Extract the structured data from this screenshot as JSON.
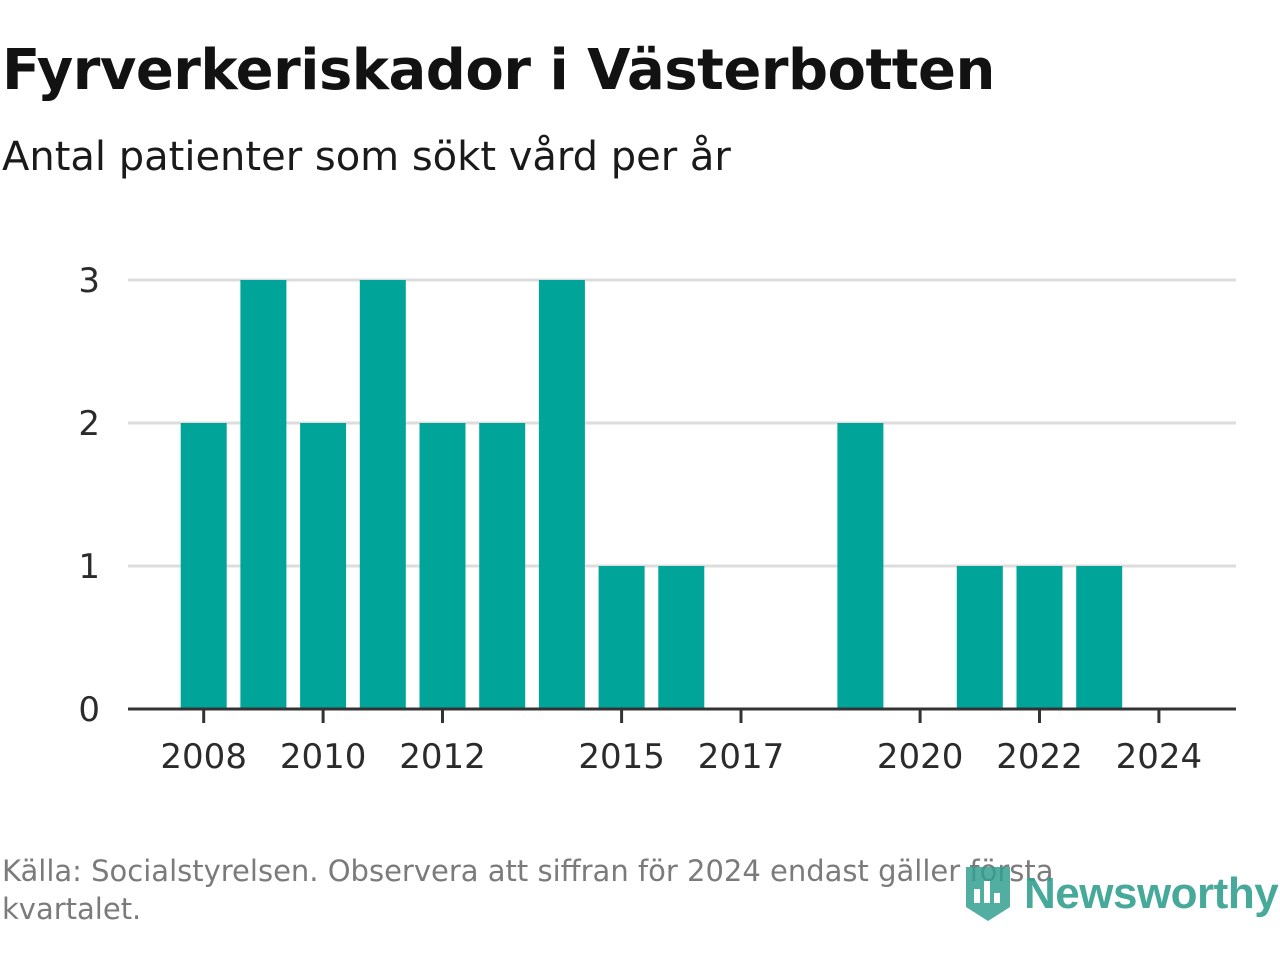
{
  "header": {
    "title": "Fyrverkeriskador i Västerbotten",
    "subtitle": "Antal patienter som sökt vård per år"
  },
  "footer": {
    "source": "Källa: Socialstyrelsen. Observera att siffran för 2024 endast gäller första kvartalet.",
    "logo_text": "Newsworthy",
    "logo_icon": "newsworthy-logo-icon"
  },
  "colors": {
    "bar": "#00a499",
    "grid": "#dddddd",
    "axis": "#333333",
    "tick_label": "#2b2b2b",
    "logo": "#33a090"
  },
  "chart_data": {
    "type": "bar",
    "categories": [
      "2007",
      "2008",
      "2009",
      "2010",
      "2011",
      "2012",
      "2013",
      "2014",
      "2015",
      "2016",
      "2017",
      "2018",
      "2019",
      "2020",
      "2021",
      "2022",
      "2023",
      "2024"
    ],
    "values": [
      0,
      2,
      3,
      2,
      3,
      2,
      2,
      3,
      1,
      1,
      0,
      0,
      2,
      0,
      1,
      1,
      1,
      0
    ],
    "x_tick_labels": [
      "2008",
      "2010",
      "2012",
      "2015",
      "2017",
      "2020",
      "2022",
      "2024"
    ],
    "y_ticks": [
      0,
      1,
      2,
      3
    ],
    "ylim": [
      0,
      3
    ],
    "grid": true,
    "legend": "none",
    "xlabel": "",
    "ylabel": ""
  }
}
